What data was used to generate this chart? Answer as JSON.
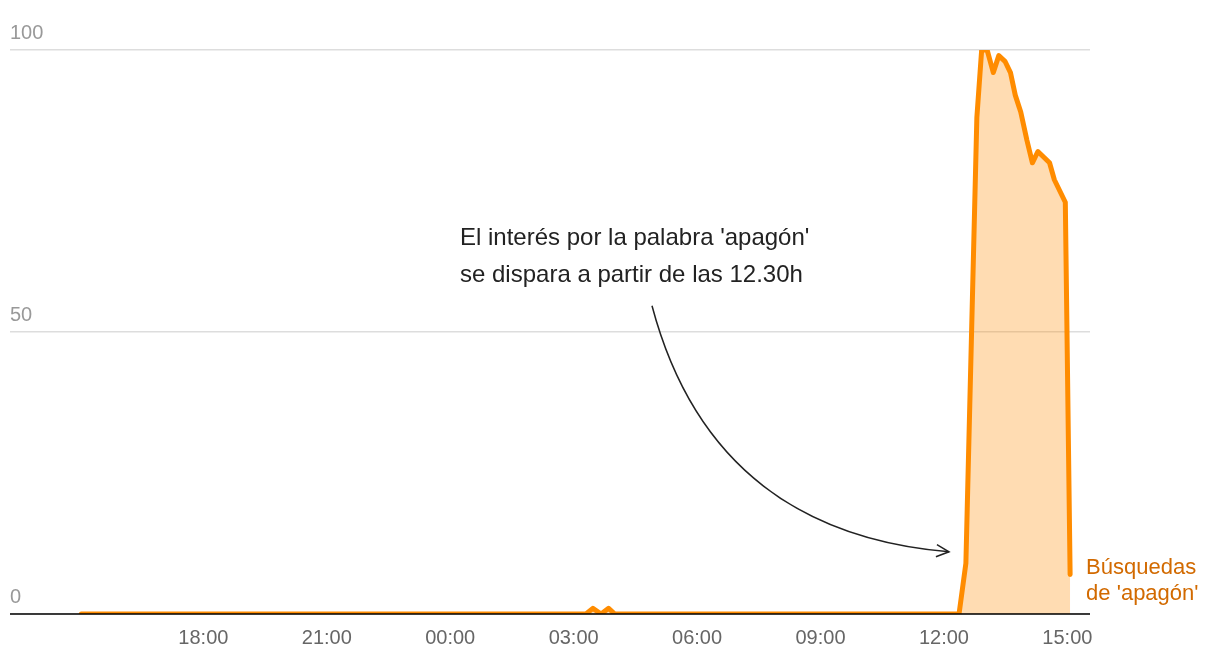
{
  "chart_data": {
    "type": "area",
    "xlim": [
      "--04-27T13:18",
      "--04-28T15:33"
    ],
    "ylim": [
      0,
      100
    ],
    "xticks": [
      {
        "value": "--04-27T18:00",
        "label": "18:00"
      },
      {
        "value": "--04-27T21:00",
        "label": "21:00"
      },
      {
        "value": "--04-28T00:00",
        "label": "00:00"
      },
      {
        "value": "--04-28T03:00",
        "label": "03:00"
      },
      {
        "value": "--04-28T06:00",
        "label": "06:00"
      },
      {
        "value": "--04-28T09:00",
        "label": "09:00"
      },
      {
        "value": "--04-28T12:00",
        "label": "12:00"
      },
      {
        "value": "--04-28T15:00",
        "label": "15:00"
      }
    ],
    "yticks": [
      0,
      50,
      100
    ],
    "grid": "y",
    "legend": false,
    "marker": "none",
    "series": [
      {
        "name": "Búsquedas de 'apagón'",
        "color": "#ff8c00",
        "x": [
          "--04-27T15:02",
          "--04-28T03:18",
          "--04-28T03:28",
          "--04-28T03:40",
          "--04-28T03:51",
          "--04-28T04:00",
          "--04-28T12:22",
          "--04-28T12:32",
          "--04-28T12:48",
          "--04-28T12:55",
          "--04-28T13:03",
          "--04-28T13:12",
          "--04-28T13:20",
          "--04-28T13:29",
          "--04-28T13:37",
          "--04-28T13:44",
          "--04-28T13:52",
          "--04-28T14:01",
          "--04-28T14:09",
          "--04-28T14:17",
          "--04-28T14:34",
          "--04-28T14:41",
          "--04-28T14:57",
          "--04-28T15:04"
        ],
        "values": [
          0,
          0,
          1,
          0,
          1,
          0,
          0,
          9,
          88,
          100,
          100,
          96,
          99,
          98,
          96,
          92,
          89,
          84,
          80,
          82,
          80,
          77,
          73,
          7
        ]
      }
    ],
    "annotations": [
      "El interés por la palabra 'apagón' se dispara a partir de las 12.30h"
    ]
  }
}
